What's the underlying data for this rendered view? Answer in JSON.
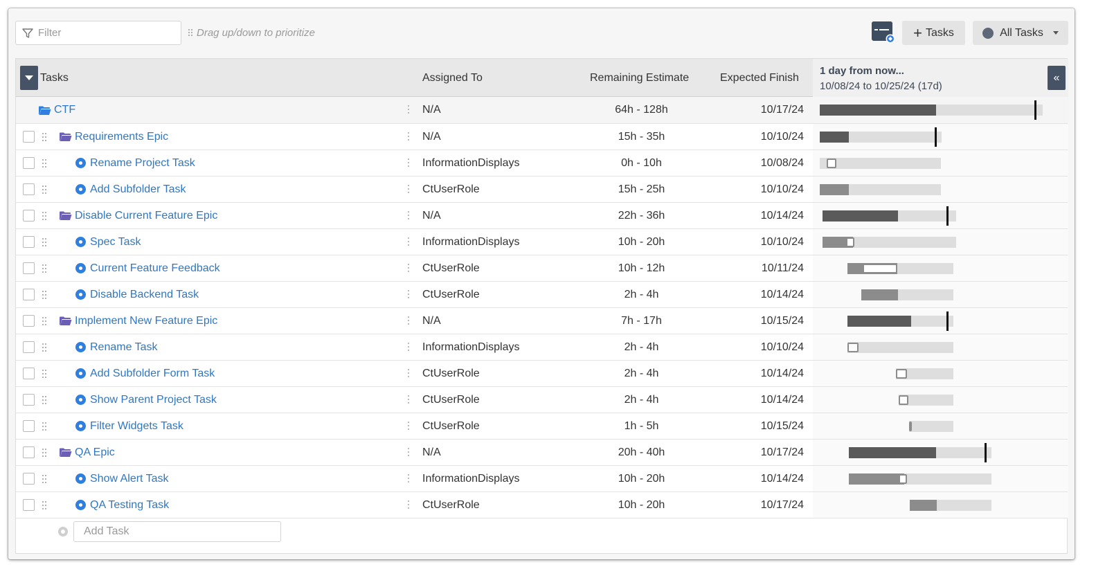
{
  "toolbar": {
    "filter_placeholder": "Filter",
    "drag_hint": "Drag up/down to prioritize",
    "tasks_button": "Tasks",
    "all_tasks_button": "All Tasks"
  },
  "header": {
    "tasks": "Tasks",
    "assigned_to": "Assigned To",
    "remaining_estimate": "Remaining Estimate",
    "expected_finish": "Expected Finish",
    "gantt_title": "1 day from now...",
    "gantt_range": "10/08/24 to 10/25/24 (17d)"
  },
  "colors": {
    "link": "#2f77c4",
    "header_button": "#465366",
    "epic_folder": "#6b5fb5",
    "root_folder": "#2f7fe0",
    "task_icon": "#2f7fe0"
  },
  "rows": [
    {
      "type": "root",
      "name": "CTF",
      "assigned": "N/A",
      "remaining": "64h - 128h",
      "finish": "10/17/24"
    },
    {
      "type": "epic",
      "name": "Requirements Epic",
      "assigned": "N/A",
      "remaining": "15h - 35h",
      "finish": "10/10/24"
    },
    {
      "type": "task",
      "name": "Rename Project Task",
      "assigned": "InformationDisplays",
      "remaining": "0h - 10h",
      "finish": "10/08/24"
    },
    {
      "type": "task",
      "name": "Add Subfolder Task",
      "assigned": "CtUserRole",
      "remaining": "15h - 25h",
      "finish": "10/10/24"
    },
    {
      "type": "epic",
      "name": "Disable Current Feature Epic",
      "assigned": "N/A",
      "remaining": "22h - 36h",
      "finish": "10/14/24"
    },
    {
      "type": "task",
      "name": "Spec Task",
      "assigned": "InformationDisplays",
      "remaining": "10h - 20h",
      "finish": "10/10/24"
    },
    {
      "type": "task",
      "name": "Current Feature Feedback",
      "assigned": "CtUserRole",
      "remaining": "10h - 12h",
      "finish": "10/11/24"
    },
    {
      "type": "task",
      "name": "Disable Backend Task",
      "assigned": "CtUserRole",
      "remaining": "2h - 4h",
      "finish": "10/14/24"
    },
    {
      "type": "epic",
      "name": "Implement New Feature Epic",
      "assigned": "N/A",
      "remaining": "7h - 17h",
      "finish": "10/15/24"
    },
    {
      "type": "task",
      "name": "Rename Task",
      "assigned": "InformationDisplays",
      "remaining": "2h - 4h",
      "finish": "10/10/24"
    },
    {
      "type": "task",
      "name": "Add Subfolder Form Task",
      "assigned": "CtUserRole",
      "remaining": "2h - 4h",
      "finish": "10/14/24"
    },
    {
      "type": "task",
      "name": "Show Parent Project Task",
      "assigned": "CtUserRole",
      "remaining": "2h - 4h",
      "finish": "10/14/24"
    },
    {
      "type": "task",
      "name": "Filter Widgets Task",
      "assigned": "CtUserRole",
      "remaining": "1h - 5h",
      "finish": "10/15/24"
    },
    {
      "type": "epic",
      "name": "QA Epic",
      "assigned": "N/A",
      "remaining": "20h - 40h",
      "finish": "10/17/24"
    },
    {
      "type": "task",
      "name": "Show Alert Task",
      "assigned": "InformationDisplays",
      "remaining": "10h - 20h",
      "finish": "10/14/24"
    },
    {
      "type": "task",
      "name": "QA Testing Task",
      "assigned": "CtUserRole",
      "remaining": "10h - 20h",
      "finish": "10/17/24"
    }
  ],
  "add_task": {
    "placeholder": "Add Task"
  }
}
